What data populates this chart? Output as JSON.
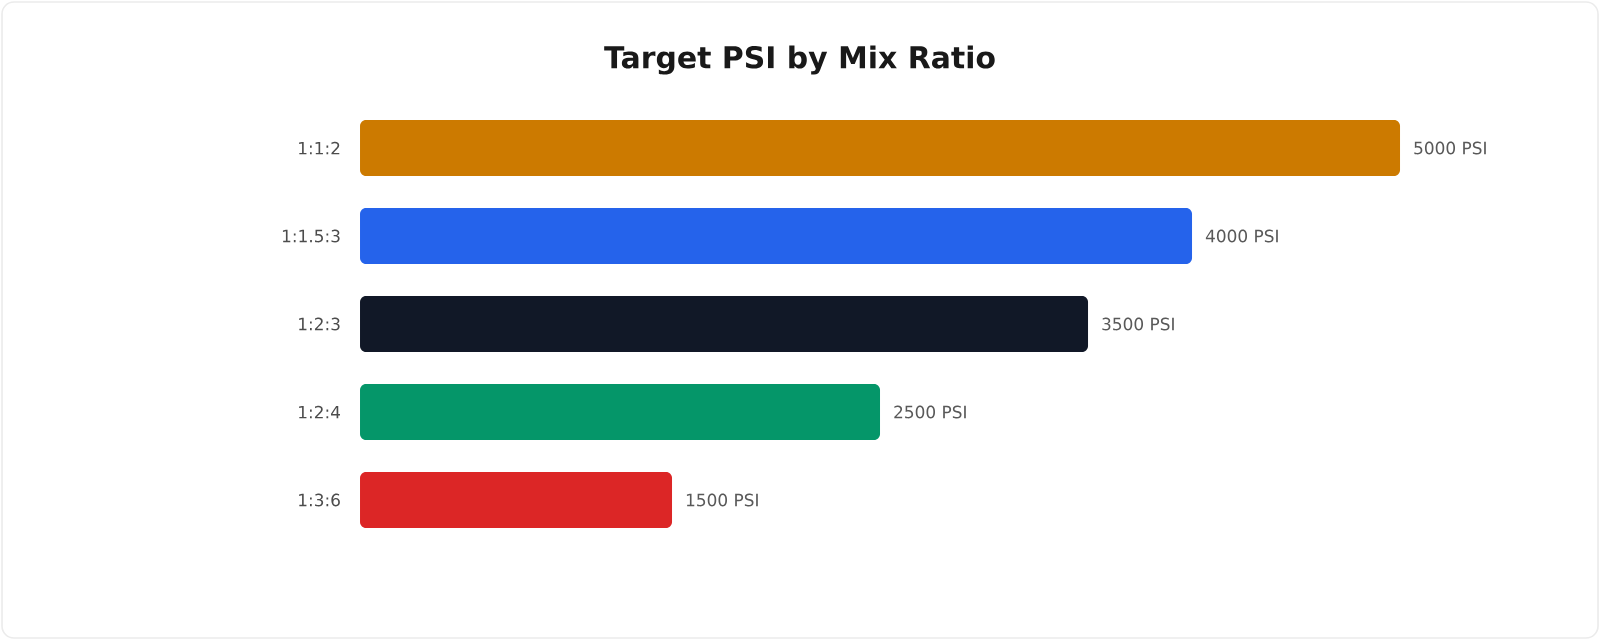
{
  "chart_data": {
    "type": "bar",
    "orientation": "horizontal",
    "title": "Target PSI by Mix Ratio",
    "categories": [
      "1:1:2",
      "1:1.5:3",
      "1:2:3",
      "1:2:4",
      "1:3:6"
    ],
    "values": [
      5000,
      4000,
      3500,
      2500,
      1500
    ],
    "colors": [
      "#cc7a00",
      "#2563eb",
      "#111827",
      "#059669",
      "#dc2626"
    ],
    "value_labels": [
      "5000 PSI",
      "4000 PSI",
      "3500 PSI",
      "2500 PSI",
      "1500 PSI"
    ]
  }
}
